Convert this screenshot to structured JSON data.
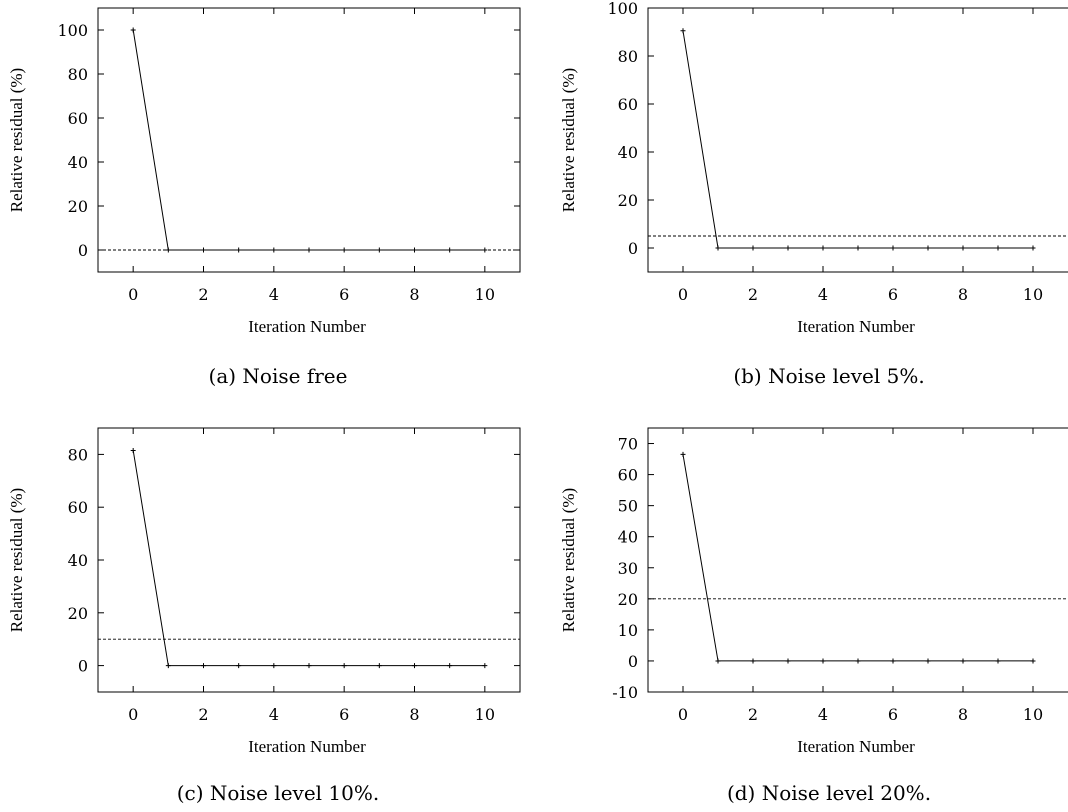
{
  "chart_data": [
    {
      "type": "line",
      "caption": "(a) Noise free",
      "xlabel": "Iteration Number",
      "ylabel": "Relative residual (%)",
      "xlim": [
        -1,
        11
      ],
      "ylim": [
        -10,
        110
      ],
      "xticks": [
        0,
        2,
        4,
        6,
        8,
        10
      ],
      "yticks": [
        0,
        20,
        40,
        60,
        80,
        100
      ],
      "grid": false,
      "x": [
        0,
        1,
        2,
        3,
        4,
        5,
        6,
        7,
        8,
        9,
        10
      ],
      "series": [
        {
          "values": [
            100,
            0,
            0,
            0,
            0,
            0,
            0,
            0,
            0,
            0,
            0
          ]
        }
      ],
      "threshold": 0
    },
    {
      "type": "line",
      "caption": "(b) Noise level 5%.",
      "xlabel": "Iteration Number",
      "ylabel": "Relative residual (%)",
      "xlim": [
        -1,
        11
      ],
      "ylim": [
        -10,
        100
      ],
      "xticks": [
        0,
        2,
        4,
        6,
        8,
        10
      ],
      "yticks": [
        0,
        20,
        40,
        60,
        80,
        100
      ],
      "grid": false,
      "x": [
        0,
        1,
        2,
        3,
        4,
        5,
        6,
        7,
        8,
        9,
        10
      ],
      "series": [
        {
          "values": [
            90.5,
            0,
            0,
            0,
            0,
            0,
            0,
            0,
            0,
            0,
            0
          ]
        }
      ],
      "threshold": 5
    },
    {
      "type": "line",
      "caption": "(c) Noise level 10%.",
      "xlabel": "Iteration Number",
      "ylabel": "Relative residual (%)",
      "xlim": [
        -1,
        11
      ],
      "ylim": [
        -10,
        90
      ],
      "xticks": [
        0,
        2,
        4,
        6,
        8,
        10
      ],
      "yticks": [
        0,
        20,
        40,
        60,
        80
      ],
      "grid": false,
      "x": [
        0,
        1,
        2,
        3,
        4,
        5,
        6,
        7,
        8,
        9,
        10
      ],
      "series": [
        {
          "values": [
            81.5,
            0,
            0,
            0,
            0,
            0,
            0,
            0,
            0,
            0,
            0
          ]
        }
      ],
      "threshold": 10
    },
    {
      "type": "line",
      "caption": "(d) Noise level 20%.",
      "xlabel": "Iteration Number",
      "ylabel": "Relative residual (%)",
      "xlim": [
        -1,
        11
      ],
      "ylim": [
        -10,
        75
      ],
      "xticks": [
        0,
        2,
        4,
        6,
        8,
        10
      ],
      "yticks": [
        -10,
        0,
        10,
        20,
        30,
        40,
        50,
        60,
        70
      ],
      "grid": false,
      "x": [
        0,
        1,
        2,
        3,
        4,
        5,
        6,
        7,
        8,
        9,
        10
      ],
      "series": [
        {
          "values": [
            66.5,
            0,
            0,
            0,
            0,
            0,
            0,
            0,
            0,
            0,
            0
          ]
        }
      ],
      "threshold": 20
    }
  ]
}
